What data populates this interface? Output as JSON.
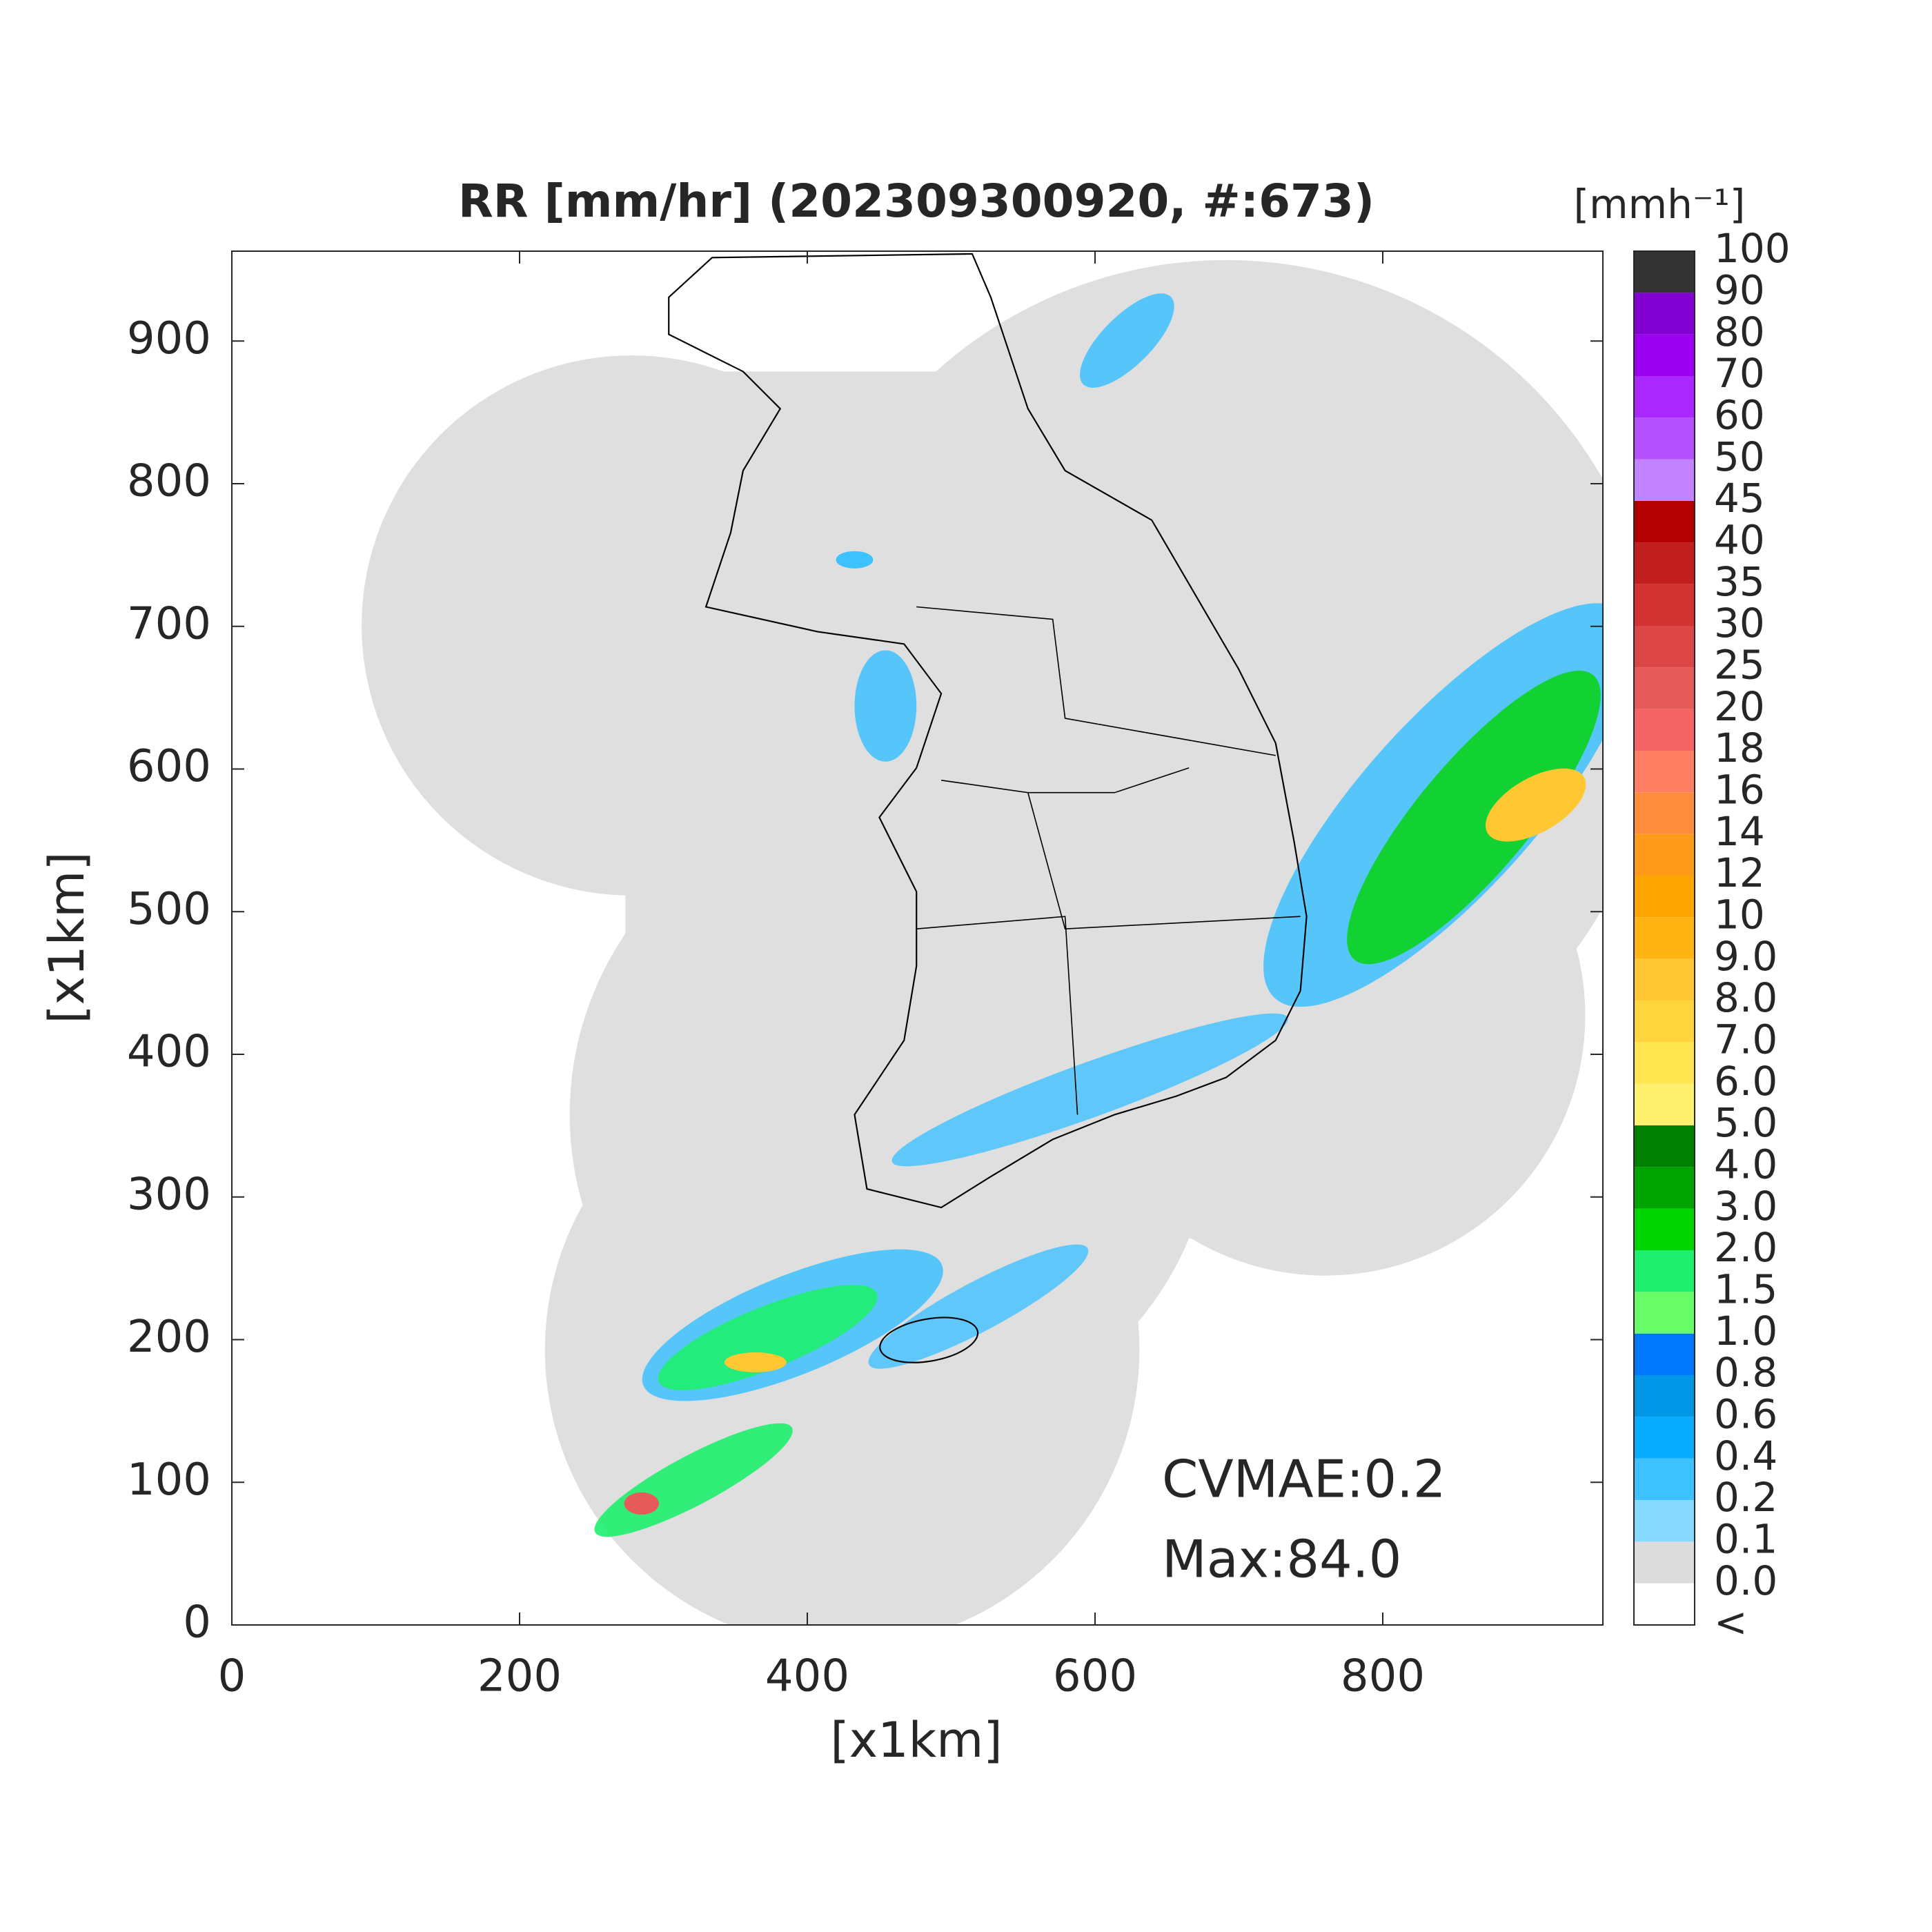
{
  "chart_data": {
    "type": "map",
    "title": "RR [mm/hr] (202309300920, #:673)",
    "xlabel": "[x1km]",
    "ylabel": "[x1km]",
    "xlim": [
      0,
      953
    ],
    "ylim": [
      0,
      963
    ],
    "xticks": [
      0,
      200,
      400,
      600,
      800
    ],
    "yticks": [
      0,
      100,
      200,
      300,
      400,
      500,
      600,
      700,
      800,
      900
    ],
    "colorbar": {
      "label": "[mmh⁻¹]",
      "levels": [
        "<",
        "0.0",
        "0.1",
        "0.2",
        "0.4",
        "0.6",
        "0.8",
        "1.0",
        "1.5",
        "2.0",
        "3.0",
        "4.0",
        "5.0",
        "6.0",
        "7.0",
        "8.0",
        "9.0",
        "10",
        "12",
        "14",
        "16",
        "18",
        "20",
        "25",
        "30",
        "35",
        "40",
        "45",
        "50",
        "60",
        "70",
        "80",
        "90",
        "100"
      ],
      "colors": [
        "#ffffff",
        "#dcdcdc",
        "#87d9ff",
        "#3ec1ff",
        "#07abff",
        "#0096e6",
        "#0077ff",
        "#69fc69",
        "#1ef06e",
        "#00d500",
        "#00a400",
        "#008000",
        "#fff06e",
        "#ffe650",
        "#ffd53c",
        "#ffc832",
        "#ffb414",
        "#ffa500",
        "#ff9a1a",
        "#ff8c3c",
        "#ff7e64",
        "#f56464",
        "#e65a5a",
        "#dc4646",
        "#d23232",
        "#c31e1e",
        "#b40000",
        "#c382ff",
        "#b450ff",
        "#aa28ff",
        "#9b00f0",
        "#8200d2",
        "#333333"
      ]
    },
    "annotations": [
      "CVMAE:0.2",
      "Max:84.0"
    ]
  }
}
